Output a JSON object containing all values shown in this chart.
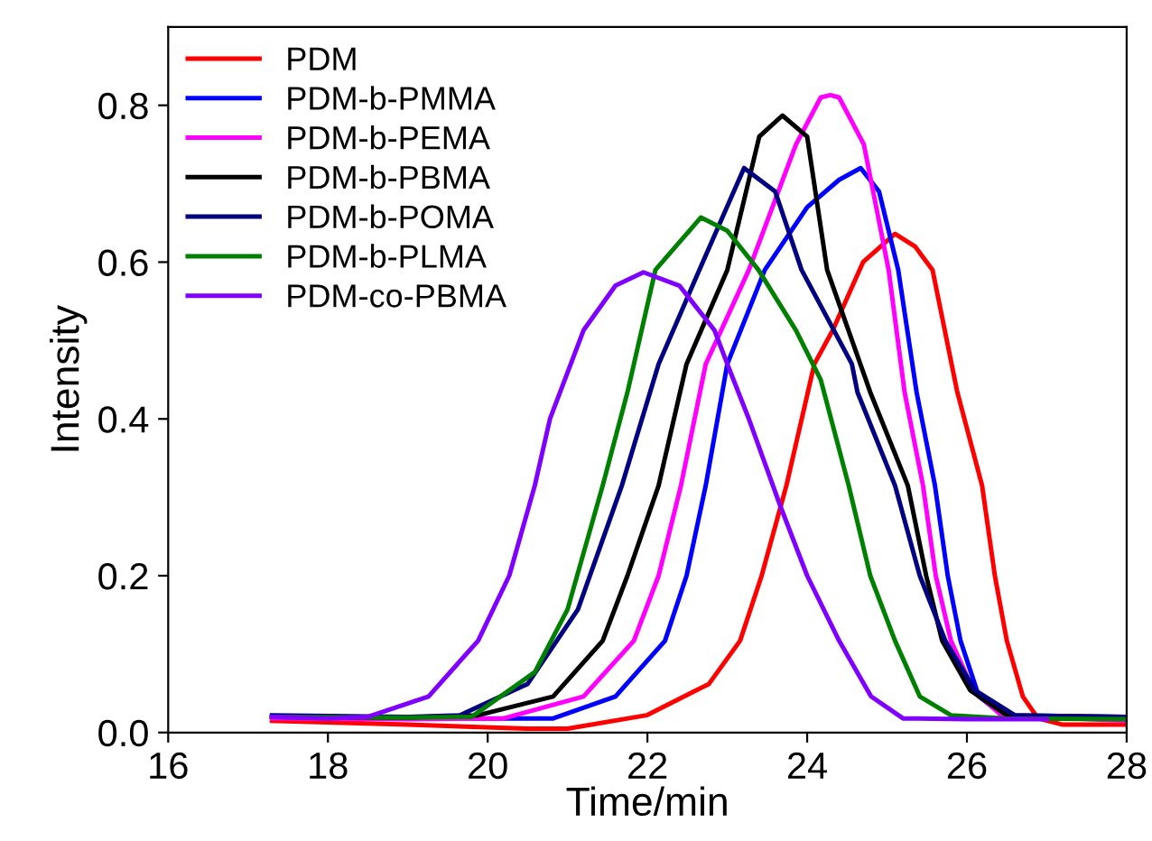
{
  "chart_data": {
    "type": "line",
    "xlabel": "Time/min",
    "ylabel": "Intensity",
    "xlim": [
      16,
      28
    ],
    "xticks": [
      16,
      18,
      20,
      22,
      24,
      26,
      28
    ],
    "ylim": [
      0,
      0.9
    ],
    "yticks": [
      "0.0",
      0.2,
      0.4,
      0.6,
      0.8
    ],
    "grid": false,
    "legend": "top left",
    "marker": "none",
    "line_style": "solid",
    "series": [
      {
        "name": "PDM",
        "color": "#ff0000",
        "x": [
          17.3,
          19.0,
          20.5,
          21.0,
          21.99,
          22.77,
          23.16,
          23.43,
          23.74,
          24.09,
          24.32,
          24.7,
          25.1,
          25.35,
          25.57,
          25.88,
          26.19,
          26.35,
          26.5,
          26.7,
          26.89,
          27.2,
          28.0
        ],
        "values": [
          0.015,
          0.01,
          0.005,
          0.005,
          0.022,
          0.062,
          0.117,
          0.2,
          0.315,
          0.47,
          0.513,
          0.6,
          0.636,
          0.62,
          0.59,
          0.434,
          0.315,
          0.2,
          0.117,
          0.046,
          0.018,
          0.01,
          0.01
        ]
      },
      {
        "name": "PDM-b-PMMA",
        "color": "#0000ff",
        "x": [
          17.3,
          19.5,
          20.82,
          21.6,
          22.22,
          22.49,
          22.73,
          23.0,
          23.47,
          24.0,
          24.4,
          24.67,
          24.9,
          25.14,
          25.37,
          25.6,
          25.76,
          25.92,
          26.15,
          26.5,
          28.0
        ],
        "values": [
          0.02,
          0.018,
          0.018,
          0.046,
          0.117,
          0.2,
          0.315,
          0.47,
          0.59,
          0.67,
          0.705,
          0.72,
          0.69,
          0.59,
          0.434,
          0.315,
          0.2,
          0.117,
          0.046,
          0.018,
          0.018
        ]
      },
      {
        "name": "PDM-b-PEMA",
        "color": "#ff00ff",
        "x": [
          17.3,
          19.0,
          20.2,
          21.2,
          21.83,
          22.14,
          22.42,
          22.73,
          23.27,
          23.86,
          24.17,
          24.29,
          24.4,
          24.71,
          25.02,
          25.22,
          25.45,
          25.61,
          25.8,
          26.08,
          26.43,
          28.0
        ],
        "values": [
          0.018,
          0.017,
          0.018,
          0.046,
          0.117,
          0.2,
          0.315,
          0.47,
          0.59,
          0.75,
          0.81,
          0.813,
          0.81,
          0.75,
          0.59,
          0.434,
          0.315,
          0.2,
          0.117,
          0.054,
          0.022,
          0.015
        ]
      },
      {
        "name": "PDM-b-PBMA",
        "color": "#000000",
        "x": [
          17.3,
          19.0,
          19.88,
          20.82,
          21.44,
          21.75,
          22.14,
          22.49,
          23.0,
          23.4,
          23.69,
          24.0,
          24.25,
          24.79,
          25.26,
          25.49,
          25.69,
          26.04,
          26.5,
          28.0
        ],
        "values": [
          0.02,
          0.019,
          0.022,
          0.046,
          0.117,
          0.2,
          0.315,
          0.47,
          0.59,
          0.76,
          0.787,
          0.76,
          0.59,
          0.434,
          0.315,
          0.2,
          0.117,
          0.054,
          0.022,
          0.02
        ]
      },
      {
        "name": "PDM-b-POMA",
        "color": "#000080",
        "x": [
          17.3,
          19.0,
          19.65,
          20.5,
          21.13,
          21.68,
          22.14,
          22.65,
          23.21,
          23.6,
          23.93,
          24.56,
          24.63,
          25.1,
          25.41,
          25.73,
          26.1,
          26.6,
          28.0
        ],
        "values": [
          0.022,
          0.02,
          0.022,
          0.062,
          0.157,
          0.315,
          0.47,
          0.59,
          0.72,
          0.69,
          0.59,
          0.47,
          0.434,
          0.315,
          0.2,
          0.117,
          0.054,
          0.022,
          0.02
        ]
      },
      {
        "name": "PDM-b-PLMA",
        "color": "#008000",
        "x": [
          17.3,
          19.0,
          19.8,
          20.59,
          21.0,
          21.44,
          21.75,
          22.1,
          22.67,
          23.0,
          23.39,
          23.86,
          24.17,
          24.52,
          24.79,
          25.1,
          25.41,
          25.8,
          26.5,
          28.0
        ],
        "values": [
          0.02,
          0.019,
          0.02,
          0.077,
          0.157,
          0.315,
          0.434,
          0.59,
          0.657,
          0.64,
          0.59,
          0.513,
          0.45,
          0.315,
          0.2,
          0.117,
          0.046,
          0.022,
          0.018,
          0.017
        ]
      },
      {
        "name": "PDM-co-PBMA",
        "color": "#8000ff",
        "x": [
          17.3,
          18.0,
          18.5,
          19.26,
          19.88,
          20.27,
          20.59,
          20.78,
          21.2,
          21.6,
          21.95,
          22.4,
          22.84,
          23.0,
          23.27,
          23.66,
          24.0,
          24.4,
          24.8,
          25.2,
          26.0,
          27.0
        ],
        "values": [
          0.02,
          0.018,
          0.02,
          0.046,
          0.117,
          0.2,
          0.315,
          0.4,
          0.513,
          0.57,
          0.587,
          0.57,
          0.513,
          0.47,
          0.4,
          0.29,
          0.2,
          0.117,
          0.046,
          0.018,
          0.017,
          0.017
        ]
      }
    ]
  }
}
